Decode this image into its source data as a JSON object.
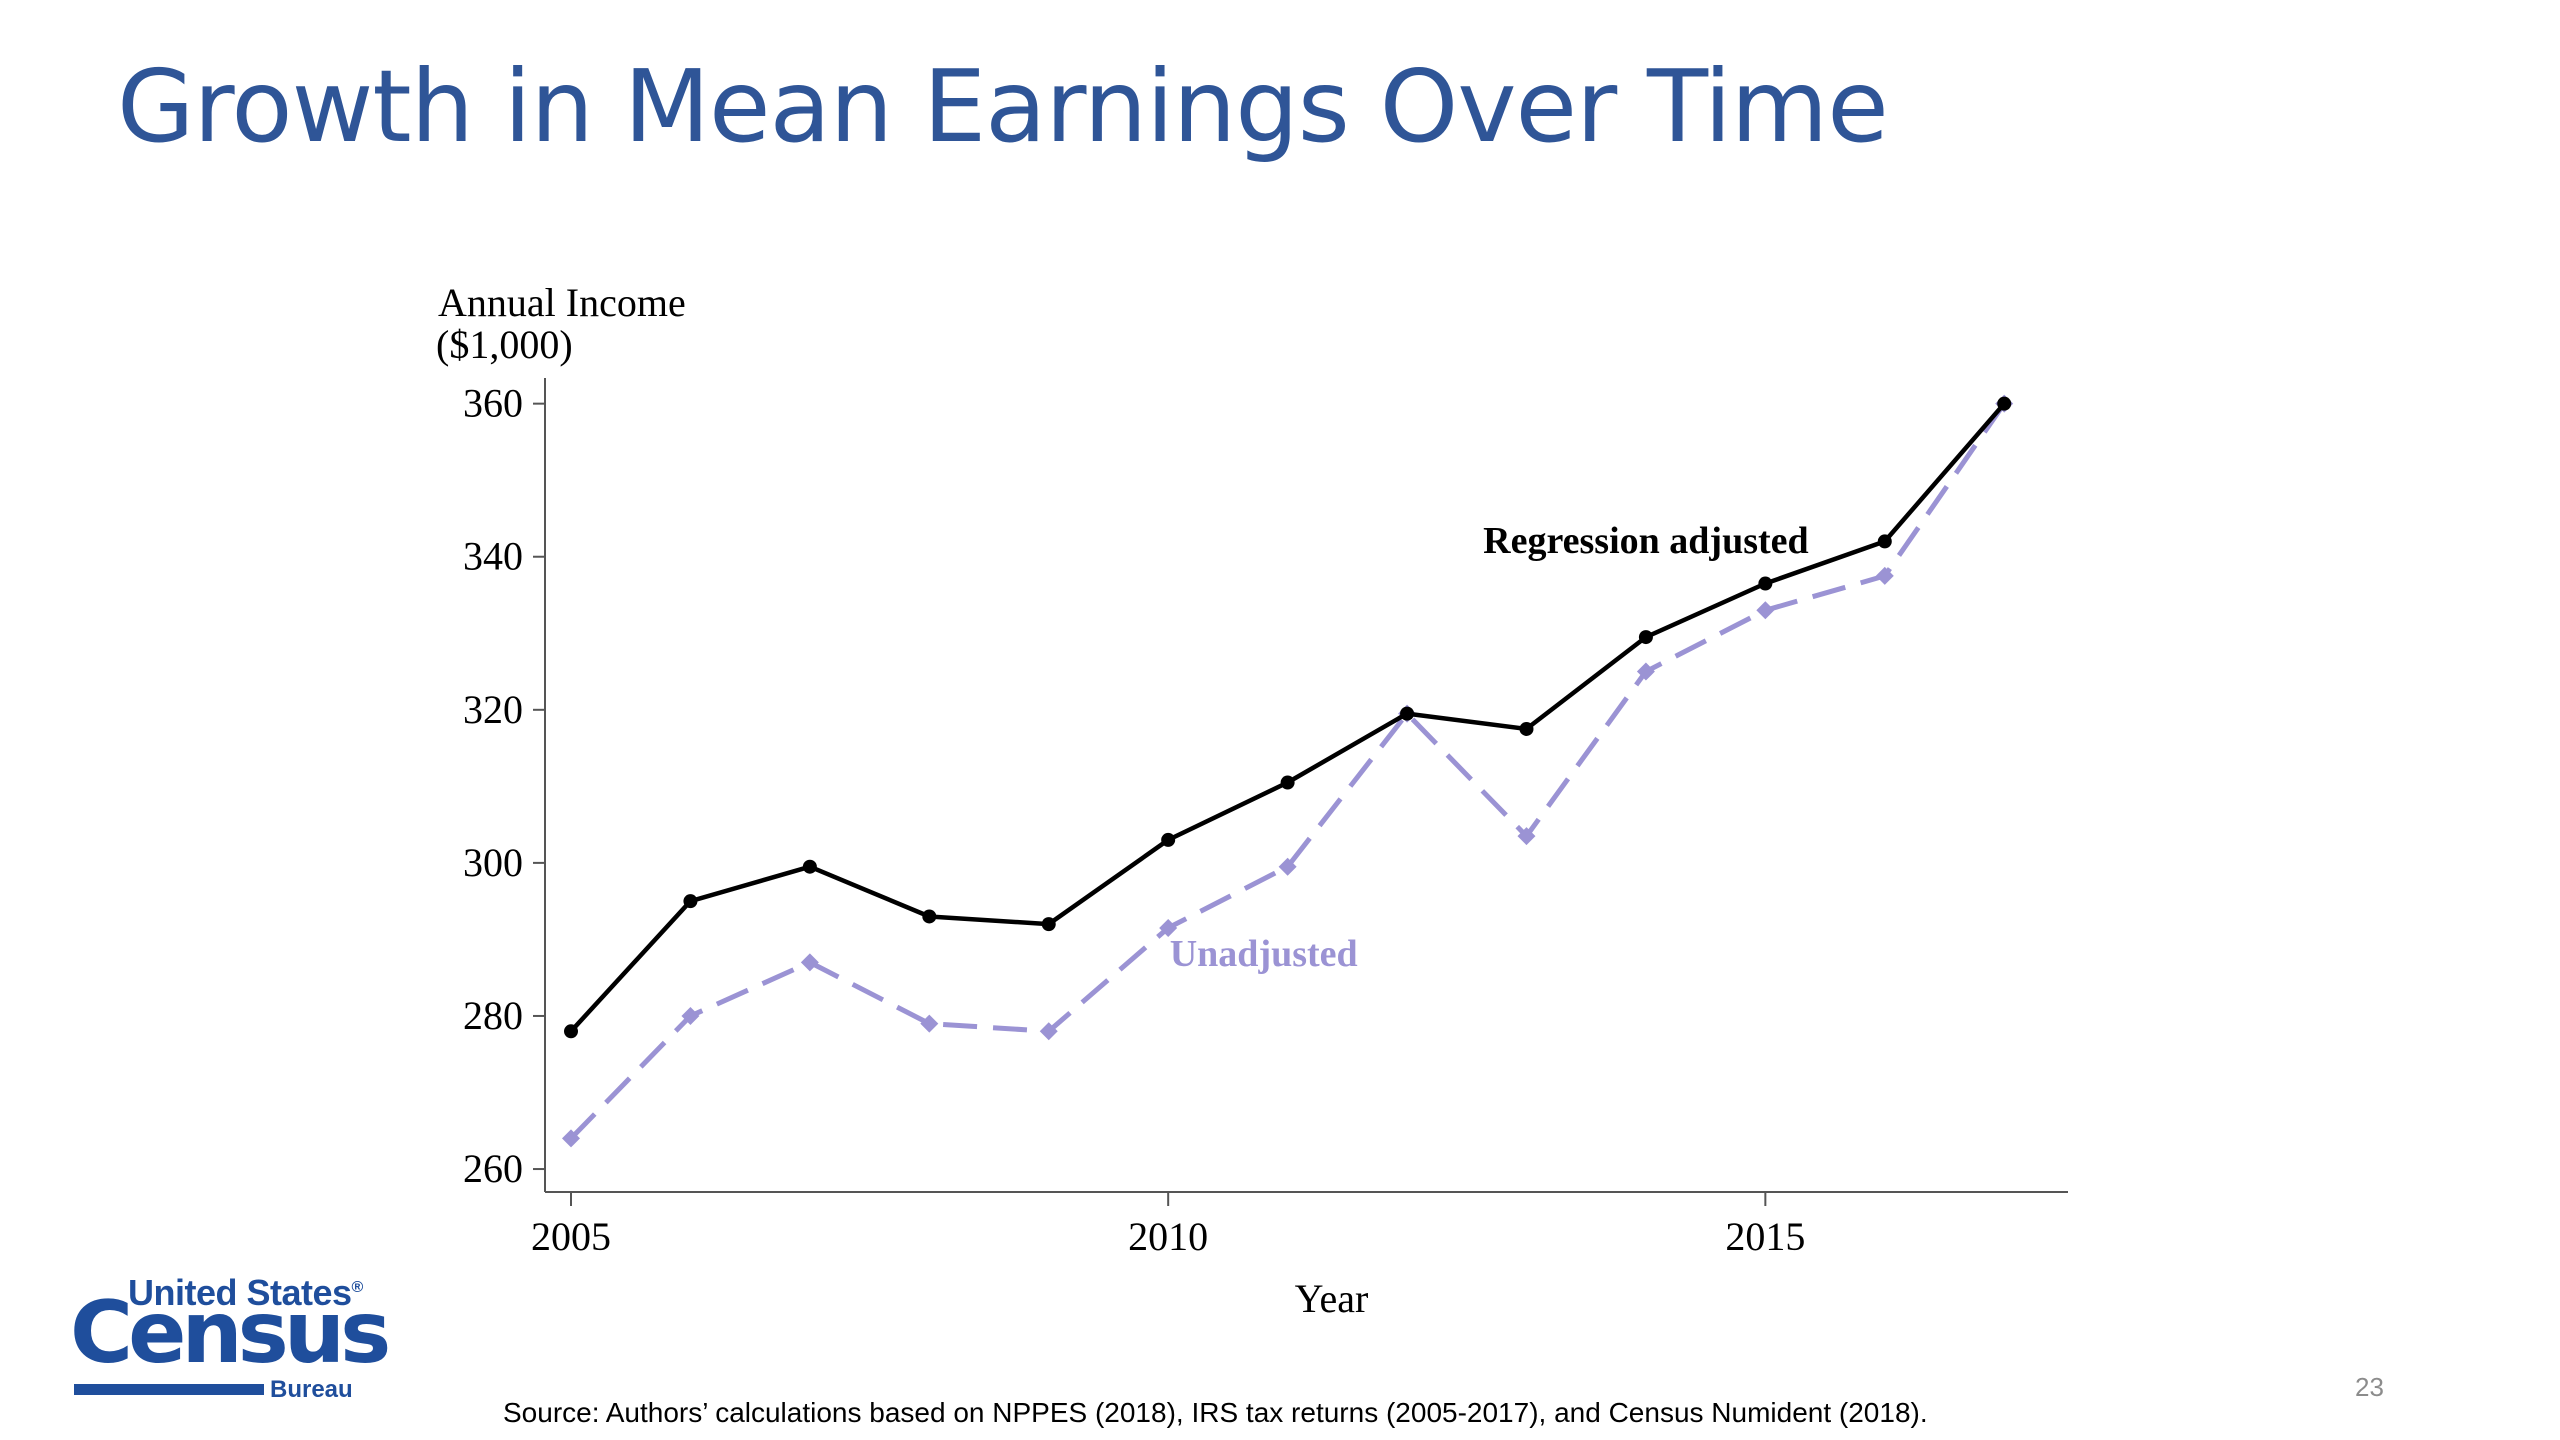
{
  "slide": {
    "title": "Growth in Mean Earnings Over Time",
    "source": "Source: Authors’ calculations based on NPPES (2018), IRS tax returns (2005-2017), and Census Numident (2018).",
    "page_number": "23"
  },
  "logo": {
    "line1": "United States",
    "registered": "®",
    "line2": "Census",
    "line3": "Bureau"
  },
  "chart_data": {
    "type": "line",
    "ylabel_line1": "Annual Income",
    "ylabel_line2": "($1,000)",
    "xlabel": "Year",
    "x": [
      2005,
      2006,
      2007,
      2008,
      2009,
      2010,
      2011,
      2012,
      2013,
      2014,
      2015,
      2016,
      2017
    ],
    "xlim": [
      2005,
      2017.4
    ],
    "ylim": [
      257,
      361
    ],
    "xticks": [
      2005,
      2010,
      2015
    ],
    "yticks": [
      260,
      280,
      300,
      320,
      340,
      360
    ],
    "grid": false,
    "series": [
      {
        "name": "Regression adjusted",
        "values": [
          278,
          295,
          299.5,
          293,
          292,
          303,
          310.5,
          319.5,
          317.5,
          329.5,
          336.5,
          342,
          360
        ],
        "color": "#000000",
        "style": "solid",
        "marker": "circle",
        "label_x": 2014,
        "label_y": 340.5
      },
      {
        "name": "Unadjusted",
        "values": [
          264,
          280,
          287,
          279,
          278,
          291.5,
          299.5,
          319.5,
          303.5,
          325,
          333,
          337.5,
          360
        ],
        "color": "#9b93d4",
        "style": "dashed",
        "marker": "diamond",
        "label_x": 2010.8,
        "label_y": 286.5
      }
    ]
  }
}
